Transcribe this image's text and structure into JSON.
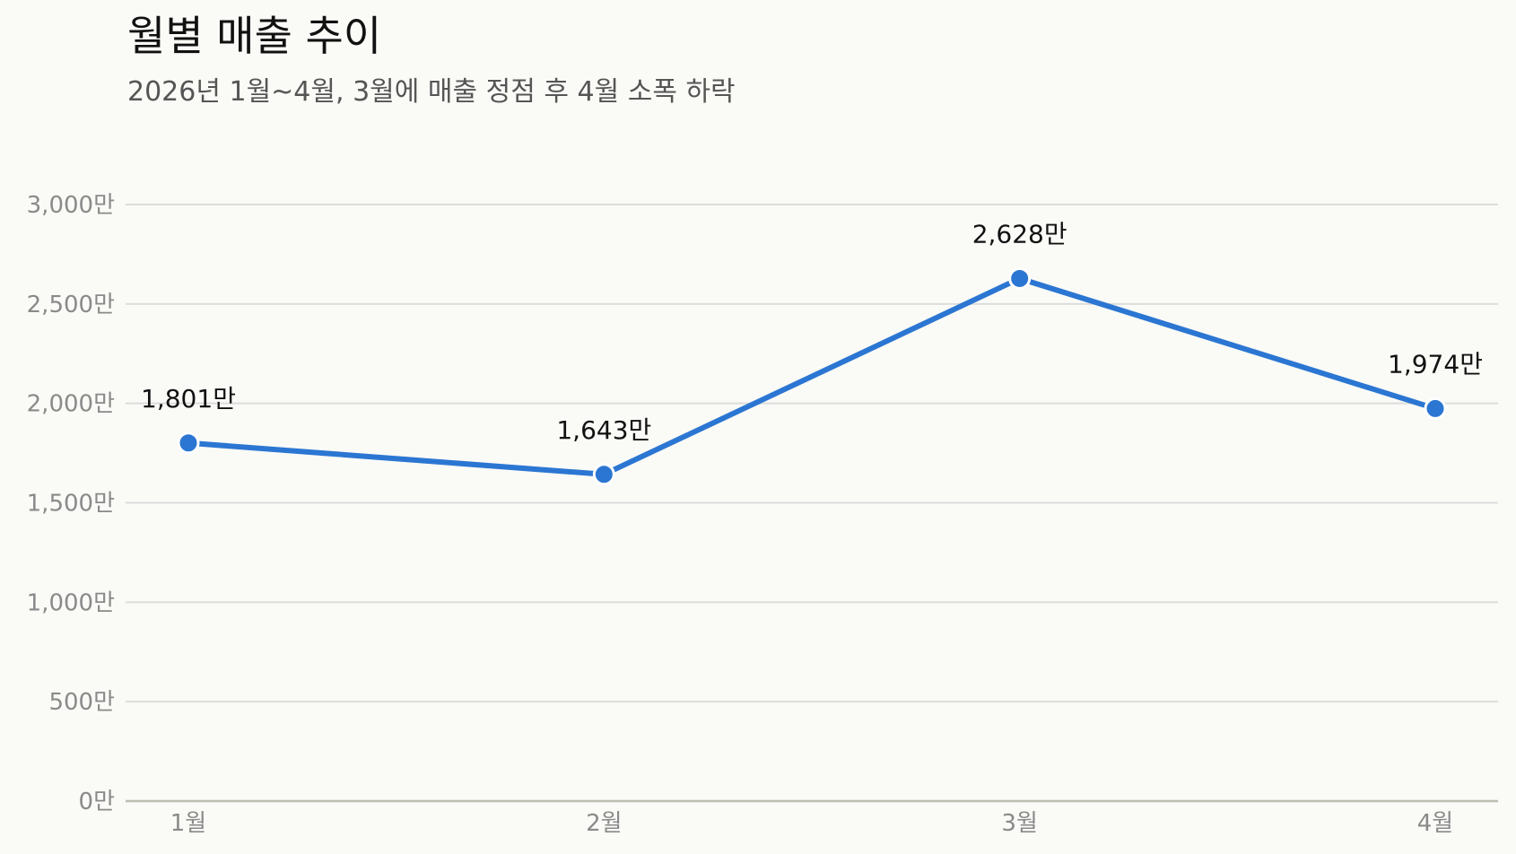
{
  "chart_data": {
    "type": "line",
    "title": "월별 매출 추이",
    "subtitle": "2026년 1월~4월, 3월에 매출 정점 후 4월 소폭 하락",
    "categories": [
      "1월",
      "2월",
      "3월",
      "4월"
    ],
    "series": [
      {
        "values": [
          1801,
          1643,
          2628,
          1974
        ],
        "labels": [
          "1,801만",
          "1,643만",
          "2,628만",
          "1,974만"
        ],
        "color": "#2B76D2"
      }
    ],
    "y_ticks": [
      0,
      500,
      1000,
      1500,
      2000,
      2500,
      3000
    ],
    "y_tick_labels": [
      "0만",
      "500만",
      "1,000만",
      "1,500만",
      "2,000만",
      "2,500만",
      "3,000만"
    ],
    "ylim": [
      0,
      3000
    ],
    "grid": true,
    "legend": "none"
  },
  "colors": {
    "background": "#FAFAF7",
    "line": "#2B76D2",
    "grid": "#DCDCDC",
    "baseline": "#BDBDB2"
  }
}
